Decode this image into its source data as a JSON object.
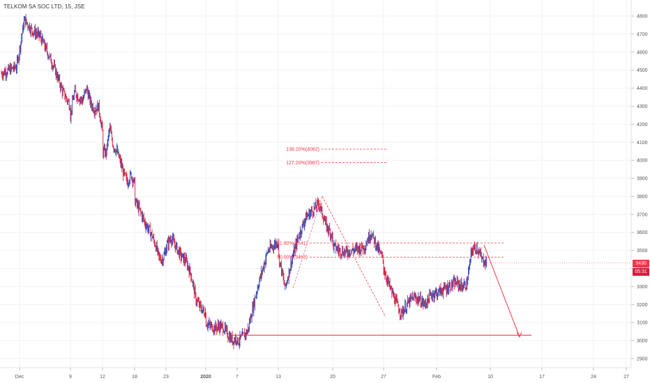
{
  "symbol": {
    "title": "TELKOM SA SOC LTD, 15, JSE"
  },
  "colors": {
    "bull": "#2c3fb0",
    "bear": "#d81b3c",
    "drawing": "#f23645",
    "grid": "#f2f2f2",
    "axis_text": "#555555",
    "tag_bg": "#f23645"
  },
  "price_tag": {
    "price": "3430",
    "countdown": "05:31"
  },
  "chart_data": {
    "type": "candlestick",
    "title": "TELKOM SA SOC LTD, 15, JSE",
    "y_ticks": [
      "4800",
      "4700",
      "4600",
      "4500",
      "4400",
      "4300",
      "4200",
      "4100",
      "4000",
      "3900",
      "3800",
      "3700",
      "3600",
      "3500",
      "3400",
      "3300",
      "3200",
      "3100",
      "3000",
      "2900"
    ],
    "ylim": [
      2860,
      4850
    ],
    "x_ticks": [
      "Dec",
      "9",
      "12",
      "18",
      "23",
      "2020",
      "7",
      "13",
      "20",
      "27",
      "Feb",
      "10",
      "17",
      "24",
      "27"
    ],
    "price_path": {
      "Dec": [
        4480,
        4500,
        4520,
        4780,
        4720,
        4690,
        4600,
        4500,
        4380,
        4250
      ],
      "9": [
        4300,
        4380,
        4350,
        4330,
        4400,
        4320,
        4280,
        4300,
        4150
      ],
      "12": [
        4050,
        4040,
        4180,
        4080,
        4050,
        3990,
        3920,
        3880,
        3920,
        3870
      ],
      "18": [
        3780,
        3740,
        3700,
        3650,
        3620,
        3580,
        3530,
        3460,
        3450,
        3500
      ],
      "23": [
        3520,
        3570,
        3520,
        3470,
        3440,
        3370,
        3230,
        3180,
        3150
      ],
      "2020": [
        3100,
        3080,
        3070,
        3080,
        3070,
        3030,
        3000,
        2990
      ],
      "7": [
        3020,
        3050,
        3300,
        3500,
        3550
      ],
      "13": [
        3480,
        3290,
        3450,
        3580,
        3680,
        3720,
        3760,
        3640,
        3580
      ],
      "20": [
        3530,
        3500,
        3490,
        3500,
        3510,
        3520,
        3600,
        3520,
        3440
      ],
      "27": [
        3400,
        3300,
        3220,
        3150,
        3200,
        3240,
        3230,
        3200,
        3250,
        3270
      ],
      "Feb": [
        3260,
        3280,
        3290,
        3310,
        3320,
        3300,
        3310,
        3500,
        3520,
        3450,
        3430
      ]
    },
    "fib_levels": [
      {
        "label": "138.20%(4062)",
        "price": 4062
      },
      {
        "label": "127.20%(3987)",
        "price": 3987
      },
      {
        "label": "61.80%(3541)",
        "price": 3541
      },
      {
        "label": "50.00%(3463)",
        "price": 3463
      }
    ],
    "support_level": 3030,
    "projection": {
      "from_price": 3530,
      "to_price": 3020
    }
  }
}
